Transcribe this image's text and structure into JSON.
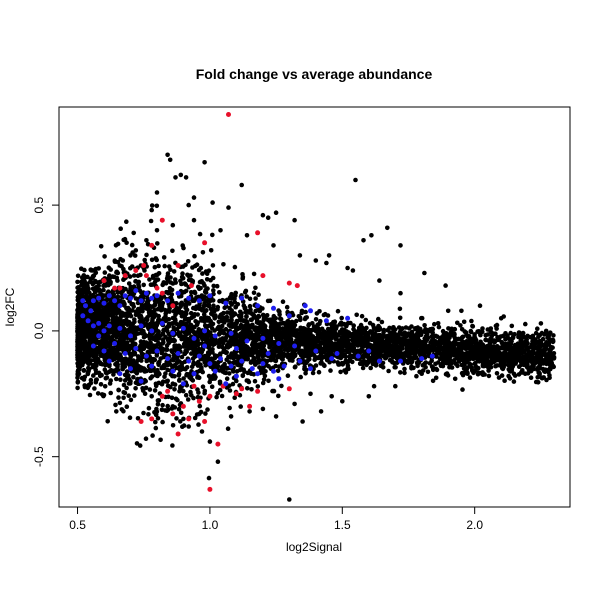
{
  "chart_data": {
    "type": "scatter",
    "title": "Fold change vs average abundance",
    "xlabel": "log2Signal",
    "ylabel": "log2FC",
    "xlim": [
      0.43,
      2.36
    ],
    "ylim": [
      -0.7,
      0.89
    ],
    "x_ticks": [
      0.5,
      1.0,
      1.5,
      2.0
    ],
    "x_tick_labels": [
      "0.5",
      "1.0",
      "1.5",
      "2.0"
    ],
    "y_ticks": [
      -0.5,
      0.0,
      0.5
    ],
    "y_tick_labels": [
      "-0.5",
      "0.0",
      "0.5"
    ],
    "grid": false,
    "legend": "none",
    "colors": {
      "background": "#000000",
      "highlight_up_down": "#e8102a",
      "highlight_mid": "#1e1ef0"
    },
    "series": [
      {
        "color": "#000000",
        "points": [
          [
            0.84,
            0.7
          ],
          [
            0.85,
            0.68
          ],
          [
            0.98,
            0.67
          ],
          [
            0.89,
            0.62
          ],
          [
            0.91,
            0.61
          ],
          [
            0.87,
            0.61
          ],
          [
            1.12,
            0.58
          ],
          [
            1.55,
            0.6
          ],
          [
            0.8,
            0.55
          ],
          [
            0.94,
            0.53
          ],
          [
            1.01,
            0.51
          ],
          [
            0.92,
            0.5
          ],
          [
            1.07,
            0.49
          ],
          [
            1.2,
            0.46
          ],
          [
            1.22,
            0.45
          ],
          [
            1.25,
            0.47
          ],
          [
            0.78,
            0.48
          ],
          [
            1.32,
            0.44
          ],
          [
            1.67,
            0.41
          ],
          [
            1.61,
            0.38
          ],
          [
            1.72,
            0.34
          ],
          [
            1.58,
            0.36
          ],
          [
            1.45,
            0.3
          ],
          [
            1.4,
            0.28
          ],
          [
            1.52,
            0.25
          ],
          [
            1.64,
            0.2
          ],
          [
            1.81,
            0.23
          ],
          [
            1.89,
            0.18
          ],
          [
            1.95,
            0.08
          ],
          [
            2.02,
            0.1
          ],
          [
            2.1,
            0.05
          ],
          [
            2.14,
            0.02
          ],
          [
            2.2,
            -0.02
          ],
          [
            2.25,
            0.03
          ],
          [
            2.28,
            -0.03
          ],
          [
            2.27,
            0.0
          ],
          [
            2.18,
            -0.08
          ],
          [
            2.05,
            -0.12
          ],
          [
            1.98,
            -0.13
          ],
          [
            1.88,
            -0.14
          ],
          [
            1.78,
            -0.18
          ],
          [
            1.7,
            -0.22
          ],
          [
            1.6,
            -0.26
          ],
          [
            1.5,
            -0.28
          ],
          [
            1.42,
            -0.32
          ],
          [
            1.35,
            -0.36
          ],
          [
            1.3,
            -0.67
          ],
          [
            1.03,
            -0.52
          ],
          [
            1.0,
            -0.44
          ],
          [
            0.97,
            -0.4
          ],
          [
            0.92,
            -0.38
          ],
          [
            0.9,
            -0.35
          ],
          [
            1.15,
            -0.32
          ],
          [
            1.25,
            -0.34
          ],
          [
            1.38,
            -0.25
          ],
          [
            0.55,
            0.14
          ],
          [
            0.58,
            0.18
          ],
          [
            0.62,
            0.22
          ],
          [
            0.66,
            0.26
          ],
          [
            0.7,
            0.3
          ],
          [
            0.72,
            0.32
          ],
          [
            0.76,
            0.36
          ],
          [
            0.8,
            0.4
          ],
          [
            0.86,
            0.42
          ],
          [
            0.94,
            0.44
          ],
          [
            1.04,
            0.4
          ],
          [
            1.14,
            0.38
          ],
          [
            1.24,
            0.34
          ],
          [
            1.34,
            0.3
          ],
          [
            1.44,
            0.27
          ],
          [
            1.54,
            0.24
          ],
          [
            1.72,
            0.15
          ],
          [
            1.9,
            0.08
          ],
          [
            2.08,
            0.02
          ],
          [
            2.22,
            -0.02
          ],
          [
            0.52,
            -0.05
          ],
          [
            0.56,
            -0.1
          ],
          [
            0.62,
            -0.14
          ],
          [
            0.7,
            -0.2
          ],
          [
            0.78,
            -0.26
          ],
          [
            0.86,
            -0.3
          ],
          [
            0.96,
            -0.33
          ],
          [
            1.08,
            -0.34
          ],
          [
            1.2,
            -0.31
          ],
          [
            1.32,
            -0.29
          ],
          [
            1.46,
            -0.26
          ],
          [
            1.62,
            -0.22
          ],
          [
            1.8,
            -0.17
          ],
          [
            1.96,
            -0.15
          ]
        ]
      },
      {
        "color": "#e8102a",
        "points": [
          [
            1.07,
            0.86
          ],
          [
            0.82,
            0.44
          ],
          [
            1.18,
            0.39
          ],
          [
            0.78,
            0.34
          ],
          [
            0.98,
            0.35
          ],
          [
            0.88,
            0.26
          ],
          [
            0.75,
            0.26
          ],
          [
            0.72,
            0.24
          ],
          [
            0.68,
            0.22
          ],
          [
            0.66,
            0.17
          ],
          [
            0.64,
            0.17
          ],
          [
            0.6,
            0.2
          ],
          [
            0.76,
            0.22
          ],
          [
            0.8,
            0.17
          ],
          [
            0.82,
            0.15
          ],
          [
            0.93,
            0.18
          ],
          [
            1.2,
            0.22
          ],
          [
            1.3,
            0.19
          ],
          [
            1.33,
            0.18
          ],
          [
            0.86,
            0.1
          ],
          [
            1.0,
            -0.63
          ],
          [
            1.03,
            -0.45
          ],
          [
            0.88,
            -0.41
          ],
          [
            0.98,
            -0.36
          ],
          [
            0.92,
            -0.35
          ],
          [
            0.78,
            -0.35
          ],
          [
            0.74,
            -0.36
          ],
          [
            0.86,
            -0.33
          ],
          [
            0.9,
            -0.3
          ],
          [
            0.82,
            -0.26
          ],
          [
            0.84,
            -0.24
          ],
          [
            0.96,
            -0.28
          ],
          [
            1.0,
            -0.26
          ],
          [
            1.05,
            -0.22
          ],
          [
            1.1,
            -0.25
          ],
          [
            1.12,
            -0.23
          ],
          [
            1.15,
            -0.3
          ],
          [
            1.18,
            -0.24
          ],
          [
            1.3,
            -0.23
          ],
          [
            0.94,
            -0.22
          ]
        ]
      },
      {
        "color": "#1e1ef0",
        "points": [
          [
            0.52,
            0.12
          ],
          [
            0.53,
            0.1
          ],
          [
            0.55,
            0.08
          ],
          [
            0.56,
            0.12
          ],
          [
            0.58,
            0.13
          ],
          [
            0.6,
            0.11
          ],
          [
            0.62,
            0.14
          ],
          [
            0.64,
            0.12
          ],
          [
            0.66,
            0.1
          ],
          [
            0.68,
            0.14
          ],
          [
            0.7,
            0.13
          ],
          [
            0.72,
            0.16
          ],
          [
            0.74,
            0.12
          ],
          [
            0.76,
            0.15
          ],
          [
            0.78,
            0.13
          ],
          [
            0.8,
            0.14
          ],
          [
            0.84,
            0.12
          ],
          [
            0.88,
            0.15
          ],
          [
            0.92,
            0.13
          ],
          [
            0.96,
            0.12
          ],
          [
            1.0,
            0.14
          ],
          [
            1.06,
            0.11
          ],
          [
            1.12,
            0.13
          ],
          [
            1.18,
            0.1
          ],
          [
            1.24,
            0.09
          ],
          [
            1.3,
            0.06
          ],
          [
            1.38,
            0.08
          ],
          [
            1.44,
            0.04
          ],
          [
            1.52,
            0.05
          ],
          [
            1.36,
            0.1
          ],
          [
            0.52,
            0.06
          ],
          [
            0.54,
            0.04
          ],
          [
            0.56,
            0.02
          ],
          [
            0.58,
            0.03
          ],
          [
            0.6,
            0.0
          ],
          [
            0.62,
            0.02
          ],
          [
            0.66,
            0.01
          ],
          [
            0.7,
            -0.02
          ],
          [
            0.74,
            0.02
          ],
          [
            0.78,
            0.0
          ],
          [
            0.82,
            0.03
          ],
          [
            0.86,
            -0.01
          ],
          [
            0.9,
            0.01
          ],
          [
            0.94,
            -0.03
          ],
          [
            0.98,
            0.0
          ],
          [
            1.02,
            -0.02
          ],
          [
            1.08,
            -0.01
          ],
          [
            1.14,
            -0.04
          ],
          [
            1.2,
            -0.03
          ],
          [
            1.26,
            -0.05
          ],
          [
            1.32,
            -0.06
          ],
          [
            1.4,
            -0.08
          ],
          [
            1.48,
            -0.09
          ],
          [
            1.56,
            -0.1
          ],
          [
            1.64,
            -0.12
          ],
          [
            1.72,
            -0.12
          ],
          [
            1.8,
            -0.11
          ],
          [
            1.84,
            -0.1
          ],
          [
            0.56,
            -0.06
          ],
          [
            0.6,
            -0.08
          ],
          [
            0.64,
            -0.05
          ],
          [
            0.68,
            -0.09
          ],
          [
            0.72,
            -0.07
          ],
          [
            0.76,
            -0.1
          ],
          [
            0.8,
            -0.08
          ],
          [
            0.84,
            -0.11
          ],
          [
            0.88,
            -0.09
          ],
          [
            0.92,
            -0.12
          ],
          [
            0.96,
            -0.1
          ],
          [
            1.0,
            -0.13
          ],
          [
            1.04,
            -0.11
          ],
          [
            1.08,
            -0.14
          ],
          [
            1.12,
            -0.12
          ],
          [
            1.16,
            -0.15
          ],
          [
            1.2,
            -0.13
          ],
          [
            1.24,
            -0.16
          ],
          [
            1.28,
            -0.14
          ],
          [
            1.34,
            -0.12
          ],
          [
            1.38,
            -0.15
          ],
          [
            0.62,
            -0.12
          ],
          [
            0.7,
            -0.15
          ],
          [
            0.78,
            -0.14
          ],
          [
            0.86,
            -0.16
          ],
          [
            0.94,
            -0.17
          ],
          [
            1.02,
            -0.16
          ],
          [
            1.1,
            -0.18
          ],
          [
            1.18,
            -0.17
          ],
          [
            1.26,
            -0.19
          ],
          [
            0.74,
            -0.2
          ],
          [
            0.9,
            -0.21
          ],
          [
            1.06,
            -0.21
          ],
          [
            0.98,
            -0.06
          ],
          [
            1.1,
            -0.07
          ],
          [
            1.22,
            -0.09
          ],
          [
            0.66,
            -0.17
          ],
          [
            0.58,
            -0.02
          ],
          [
            1.46,
            -0.11
          ],
          [
            1.6,
            -0.08
          ]
        ]
      }
    ]
  }
}
